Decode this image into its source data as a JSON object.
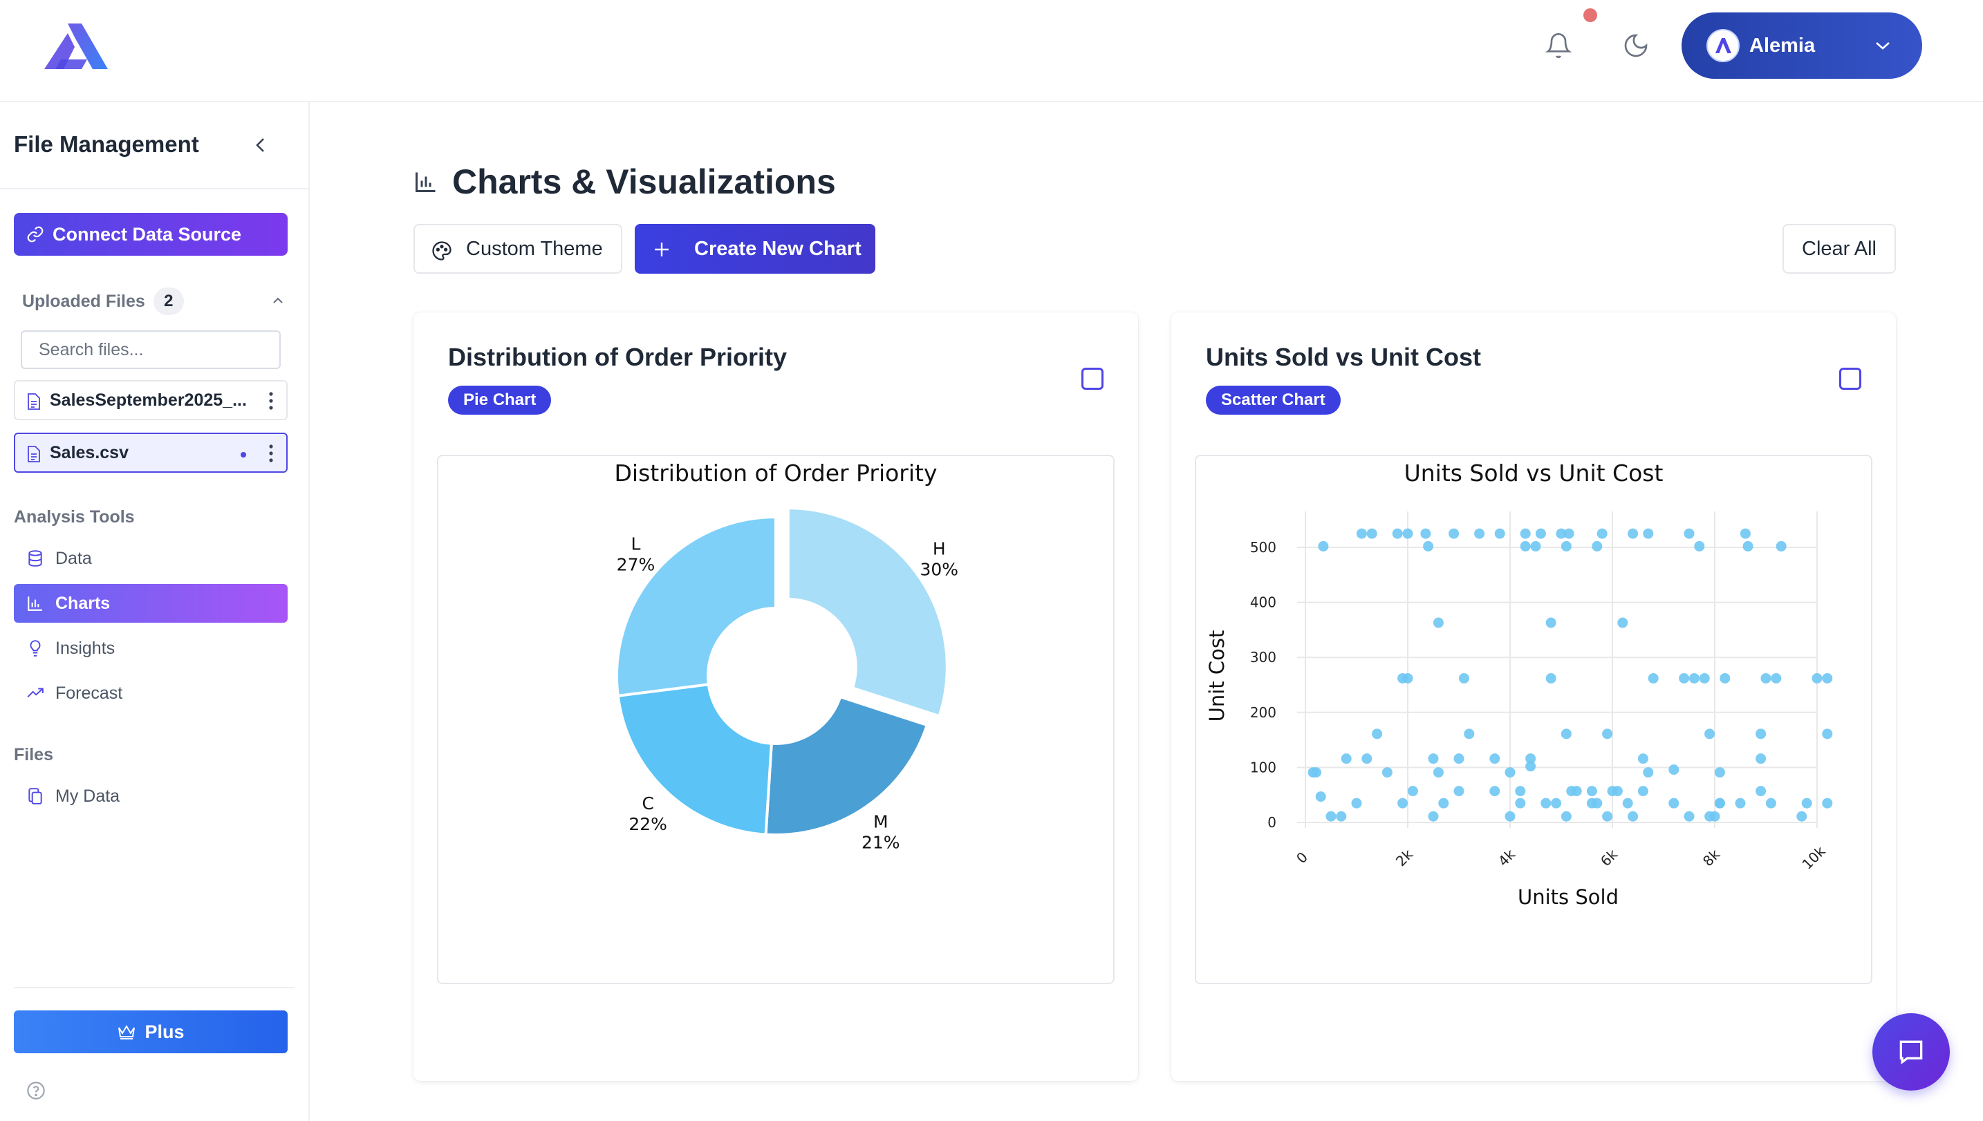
{
  "header": {
    "user_name": "Alemia",
    "brand_colors": {
      "accent": "#3b3fe0",
      "sidebar_gradient": "#7c3aed",
      "notif": "#e57373"
    }
  },
  "sidebar": {
    "title": "File Management",
    "connect_label": "Connect Data Source",
    "uploaded_label": "Uploaded Files",
    "uploaded_count": "2",
    "search_placeholder": "Search files...",
    "files": [
      {
        "name": "SalesSeptember2025_..."
      },
      {
        "name": "Sales.csv"
      }
    ],
    "analysis_label": "Analysis Tools",
    "analysis_items": [
      {
        "label": "Data",
        "icon": "database-icon"
      },
      {
        "label": "Charts",
        "icon": "bar-chart-icon"
      },
      {
        "label": "Insights",
        "icon": "lightbulb-icon"
      },
      {
        "label": "Forecast",
        "icon": "trending-up-icon"
      }
    ],
    "files_label": "Files",
    "my_data_label": "My Data",
    "plus_label": "Plus"
  },
  "main": {
    "page_title": "Charts & Visualizations",
    "custom_theme_label": "Custom Theme",
    "create_chart_label": "Create New Chart",
    "clear_all_label": "Clear All"
  },
  "cards": [
    {
      "title": "Distribution of Order Priority",
      "badge": "Pie Chart"
    },
    {
      "title": "Units Sold vs Unit Cost",
      "badge": "Scatter Chart"
    }
  ],
  "chart_data": [
    {
      "type": "pie",
      "title": "Distribution of Order Priority",
      "hole": true,
      "slices": [
        {
          "label": "H",
          "value": 30,
          "color": "#a8def7"
        },
        {
          "label": "M",
          "value": 21,
          "color": "#4a9fd4"
        },
        {
          "label": "C",
          "value": 22,
          "color": "#5bc3f5"
        },
        {
          "label": "L",
          "value": 27,
          "color": "#7fd0f8"
        }
      ]
    },
    {
      "type": "scatter",
      "title": "Units Sold vs Unit Cost",
      "xlabel": "Units Sold",
      "ylabel": "Unit Cost",
      "xlim": [
        0,
        10000
      ],
      "ylim": [
        0,
        530
      ],
      "xticks": [
        0,
        2000,
        4000,
        6000,
        8000,
        10000
      ],
      "xtick_labels": [
        "0",
        "2k",
        "4k",
        "6k",
        "8k",
        "10k"
      ],
      "yticks": [
        0,
        100,
        200,
        300,
        400,
        500
      ],
      "grid": true,
      "color": "#6ec6f3",
      "points": [
        [
          150,
          91
        ],
        [
          210,
          91
        ],
        [
          300,
          47
        ],
        [
          1100,
          525
        ],
        [
          1300,
          525
        ],
        [
          1800,
          525
        ],
        [
          2000,
          525
        ],
        [
          2350,
          525
        ],
        [
          2900,
          525
        ],
        [
          3400,
          525
        ],
        [
          3800,
          525
        ],
        [
          4300,
          525
        ],
        [
          4600,
          525
        ],
        [
          5000,
          525
        ],
        [
          5150,
          525
        ],
        [
          5800,
          525
        ],
        [
          6400,
          525
        ],
        [
          6700,
          525
        ],
        [
          7500,
          525
        ],
        [
          8600,
          525
        ],
        [
          8650,
          502
        ],
        [
          9300,
          502
        ],
        [
          7700,
          502
        ],
        [
          350,
          502
        ],
        [
          2400,
          502
        ],
        [
          4300,
          502
        ],
        [
          4500,
          502
        ],
        [
          5100,
          502
        ],
        [
          5700,
          502
        ],
        [
          4800,
          363
        ],
        [
          6200,
          363
        ],
        [
          2600,
          363
        ],
        [
          1900,
          262
        ],
        [
          2000,
          262
        ],
        [
          3100,
          262
        ],
        [
          4800,
          262
        ],
        [
          6800,
          262
        ],
        [
          7400,
          262
        ],
        [
          7600,
          262
        ],
        [
          8200,
          262
        ],
        [
          9000,
          262
        ],
        [
          9200,
          262
        ],
        [
          10000,
          262
        ],
        [
          10200,
          262
        ],
        [
          7800,
          262
        ],
        [
          1400,
          161
        ],
        [
          3200,
          161
        ],
        [
          5100,
          161
        ],
        [
          5900,
          161
        ],
        [
          7900,
          161
        ],
        [
          8900,
          161
        ],
        [
          10200,
          161
        ],
        [
          800,
          116
        ],
        [
          1200,
          116
        ],
        [
          2500,
          116
        ],
        [
          3000,
          116
        ],
        [
          3700,
          116
        ],
        [
          4400,
          116
        ],
        [
          6600,
          116
        ],
        [
          8900,
          116
        ],
        [
          7200,
          96
        ],
        [
          8100,
          91
        ],
        [
          1600,
          91
        ],
        [
          2600,
          91
        ],
        [
          4000,
          91
        ],
        [
          6700,
          91
        ],
        [
          4400,
          102
        ],
        [
          1000,
          35
        ],
        [
          1900,
          35
        ],
        [
          2700,
          35
        ],
        [
          4200,
          35
        ],
        [
          4700,
          35
        ],
        [
          5600,
          35
        ],
        [
          5700,
          35
        ],
        [
          6300,
          35
        ],
        [
          7200,
          35
        ],
        [
          8100,
          35
        ],
        [
          8500,
          35
        ],
        [
          9100,
          35
        ],
        [
          9800,
          35
        ],
        [
          10200,
          35
        ],
        [
          3000,
          57
        ],
        [
          3700,
          57
        ],
        [
          5200,
          57
        ],
        [
          5600,
          57
        ],
        [
          6100,
          57
        ],
        [
          6600,
          57
        ],
        [
          8900,
          57
        ],
        [
          500,
          11
        ],
        [
          700,
          11
        ],
        [
          2500,
          11
        ],
        [
          4000,
          11
        ],
        [
          5100,
          11
        ],
        [
          5900,
          11
        ],
        [
          6400,
          11
        ],
        [
          7500,
          11
        ],
        [
          8000,
          11
        ],
        [
          9700,
          11
        ],
        [
          8100,
          35
        ],
        [
          4200,
          57
        ],
        [
          4900,
          35
        ],
        [
          7900,
          11
        ],
        [
          5300,
          57
        ],
        [
          6000,
          57
        ],
        [
          2100,
          57
        ]
      ]
    }
  ]
}
